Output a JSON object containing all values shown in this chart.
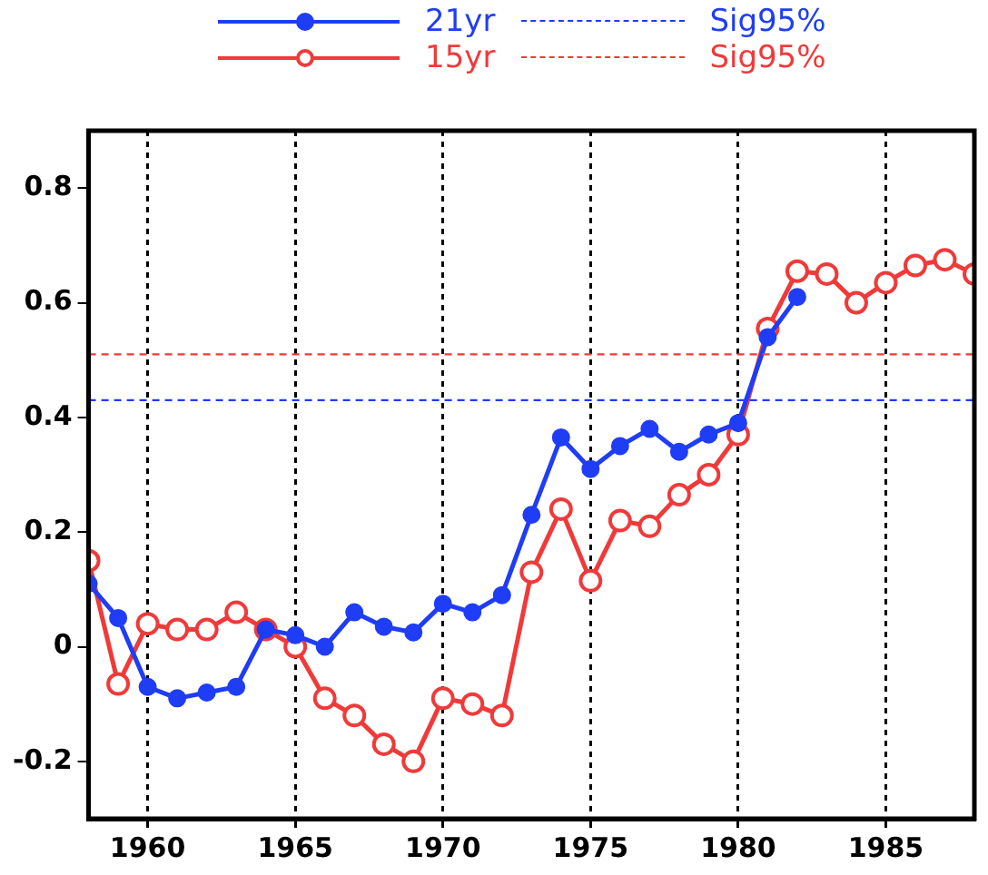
{
  "chart_data": {
    "type": "line",
    "x": [
      1958,
      1959,
      1960,
      1961,
      1962,
      1963,
      1964,
      1965,
      1966,
      1967,
      1968,
      1969,
      1970,
      1971,
      1972,
      1973,
      1974,
      1975,
      1976,
      1977,
      1978,
      1979,
      1980,
      1981,
      1982,
      1983,
      1984,
      1985,
      1986,
      1987,
      1988
    ],
    "series": [
      {
        "name": "21yr",
        "color": "#1f3df5",
        "values": [
          0.11,
          0.05,
          -0.07,
          -0.09,
          -0.08,
          -0.07,
          0.03,
          0.02,
          0.0,
          0.06,
          0.035,
          0.025,
          0.075,
          0.06,
          0.09,
          0.23,
          0.365,
          0.31,
          0.35,
          0.38,
          0.34,
          0.37,
          0.39,
          0.54,
          0.61,
          null,
          null,
          null,
          null,
          null,
          null
        ]
      },
      {
        "name": "15yr",
        "color": "#f03a3a",
        "values": [
          0.15,
          -0.065,
          0.04,
          0.03,
          0.03,
          0.06,
          0.03,
          0.0,
          -0.09,
          -0.12,
          -0.17,
          -0.2,
          -0.09,
          -0.1,
          -0.12,
          0.13,
          0.24,
          0.115,
          0.22,
          0.21,
          0.265,
          0.3,
          0.37,
          0.555,
          0.655,
          0.65,
          0.6,
          0.635,
          0.665,
          0.675,
          0.65
        ]
      }
    ],
    "ref_lines": [
      {
        "axis": "y",
        "value": 0.43,
        "label": "Sig95%",
        "color": "#1f3df5",
        "line_style": "dashed"
      },
      {
        "axis": "y",
        "value": 0.51,
        "label": "Sig95%",
        "color": "#f03a3a",
        "line_style": "dashed"
      }
    ],
    "xlim": [
      1958,
      1988
    ],
    "xticks": [
      1960,
      1965,
      1970,
      1975,
      1980,
      1985
    ],
    "ylim": [
      -0.3,
      0.9
    ],
    "yticks": [
      -0.2,
      0,
      0.2,
      0.4,
      0.6,
      0.8
    ],
    "grid": "x",
    "legend": "top",
    "marker": "circle",
    "line_style": "solid"
  }
}
